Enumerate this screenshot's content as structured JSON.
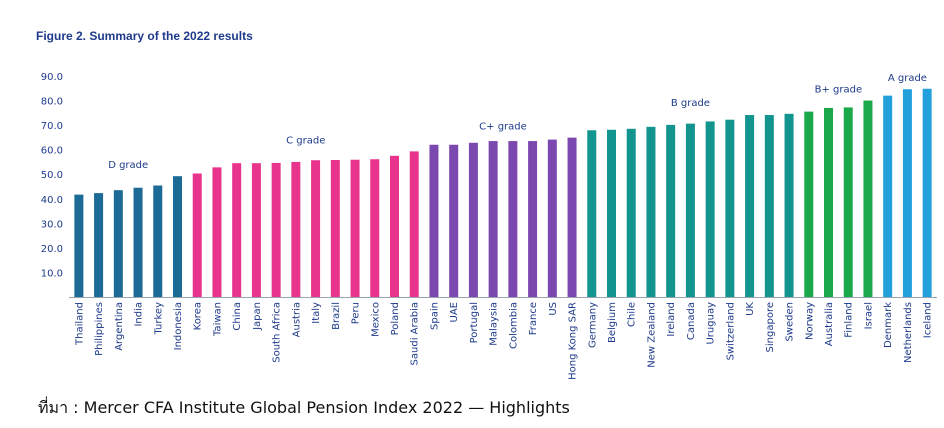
{
  "figure_title": "Figure 2. Summary of the 2022 results",
  "source_note": "ที่มา : Mercer CFA Institute Global Pension Index 2022 — Highlights",
  "colors": {
    "D": "#1c6a96",
    "C": "#e8348c",
    "C+": "#7b48b0",
    "B": "#12948f",
    "B+": "#1aa84a",
    "A": "#21a0db",
    "axis_text": "#1e3a8a",
    "grade_label": "#1e3a8a"
  },
  "chart_data": {
    "type": "bar",
    "title": "Figure 2. Summary of the 2022 results",
    "xlabel": "",
    "ylabel": "",
    "ylim": [
      0,
      90
    ],
    "yticks": [
      "90.0",
      "80.0",
      "70.0",
      "60.0",
      "50.0",
      "40.0",
      "30.0",
      "20.0",
      "10.0"
    ],
    "grid": false,
    "categories": [
      "Thailand",
      "Philippines",
      "Argentina",
      "India",
      "Turkey",
      "Indonesia",
      "Korea",
      "Taiwan",
      "China",
      "Japan",
      "South Africa",
      "Austria",
      "Italy",
      "Brazil",
      "Peru",
      "Mexico",
      "Poland",
      "Saudi Arabia",
      "Spain",
      "UAE",
      "Portugal",
      "Malaysia",
      "Colombia",
      "France",
      "US",
      "Hong Kong SAR",
      "Germany",
      "Belgium",
      "Chile",
      "New Zealand",
      "Ireland",
      "Canada",
      "Uruguay",
      "Switzerland",
      "UK",
      "Singapore",
      "Sweden",
      "Norway",
      "Australia",
      "Finland",
      "Israel",
      "Denmark",
      "Netherlands",
      "Iceland"
    ],
    "values": [
      41.7,
      42.3,
      43.5,
      44.5,
      45.4,
      49.2,
      50.3,
      52.8,
      54.5,
      54.5,
      54.6,
      55.0,
      55.7,
      55.8,
      55.9,
      56.1,
      57.5,
      59.3,
      62.0,
      62.0,
      62.8,
      63.5,
      63.5,
      63.5,
      64.1,
      64.9,
      67.9,
      68.1,
      68.5,
      69.3,
      70.1,
      70.6,
      71.5,
      72.2,
      74.1,
      74.1,
      74.6,
      75.5,
      77.0,
      77.2,
      80.0,
      82.0,
      84.6,
      84.8
    ],
    "grades": [
      "D",
      "D",
      "D",
      "D",
      "D",
      "D",
      "C",
      "C",
      "C",
      "C",
      "C",
      "C",
      "C",
      "C",
      "C",
      "C",
      "C",
      "C",
      "C+",
      "C+",
      "C+",
      "C+",
      "C+",
      "C+",
      "C+",
      "C+",
      "B",
      "B",
      "B",
      "B",
      "B",
      "B",
      "B",
      "B",
      "B",
      "B",
      "B",
      "B+",
      "B+",
      "B+",
      "B+",
      "A",
      "A",
      "A"
    ],
    "grade_labels": [
      {
        "text": "D grade",
        "grade": "D"
      },
      {
        "text": "C grade",
        "grade": "C"
      },
      {
        "text": "C+ grade",
        "grade": "C+"
      },
      {
        "text": "B grade",
        "grade": "B"
      },
      {
        "text": "B+ grade",
        "grade": "B+"
      },
      {
        "text": "A grade",
        "grade": "A"
      }
    ]
  }
}
